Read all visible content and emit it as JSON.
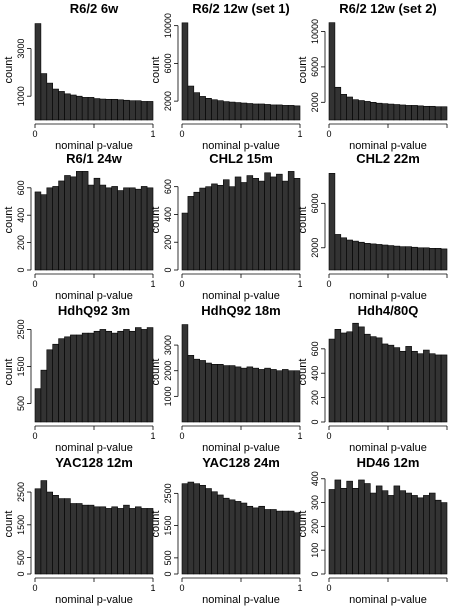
{
  "chart_data": [
    {
      "type": "bar",
      "title": "R6/2 6w",
      "xlabel": "nominal p-value",
      "ylabel": "count",
      "xlim": [
        0,
        1
      ],
      "ylim": [
        0,
        4200
      ],
      "xticks": [
        0,
        0.5,
        1
      ],
      "xticklabels": [
        "0",
        "",
        "1"
      ],
      "yticks": [
        1000,
        3000
      ],
      "yticklabels": [
        "1000",
        "3000"
      ],
      "bin_edges": [
        0,
        0.05,
        0.1,
        0.15,
        0.2,
        0.25,
        0.3,
        0.35,
        0.4,
        0.45,
        0.5,
        0.55,
        0.6,
        0.65,
        0.7,
        0.75,
        0.8,
        0.85,
        0.9,
        0.95,
        1
      ],
      "values": [
        4050,
        1950,
        1550,
        1300,
        1200,
        1100,
        1050,
        1000,
        950,
        950,
        900,
        880,
        870,
        870,
        850,
        830,
        810,
        810,
        780,
        780
      ]
    },
    {
      "type": "bar",
      "title": "R6/2 12w (set 1)",
      "xlabel": "nominal p-value",
      "ylabel": "count",
      "xlim": [
        0,
        1
      ],
      "ylim": [
        0,
        10600
      ],
      "xticks": [
        0,
        0.5,
        1
      ],
      "xticklabels": [
        "0",
        "",
        "1"
      ],
      "yticks": [
        2000,
        6000,
        10000
      ],
      "yticklabels": [
        "2000",
        "6000",
        "10000"
      ],
      "bin_edges": [
        0,
        0.05,
        0.1,
        0.15,
        0.2,
        0.25,
        0.3,
        0.35,
        0.4,
        0.45,
        0.5,
        0.55,
        0.6,
        0.65,
        0.7,
        0.75,
        0.8,
        0.85,
        0.9,
        0.95,
        1
      ],
      "values": [
        10300,
        3600,
        2900,
        2500,
        2300,
        2150,
        2050,
        1950,
        1900,
        1850,
        1800,
        1750,
        1700,
        1700,
        1650,
        1600,
        1600,
        1550,
        1550,
        1500
      ]
    },
    {
      "type": "bar",
      "title": "R6/2 12w (set 2)",
      "xlabel": "nominal p-value",
      "ylabel": "count",
      "xlim": [
        0,
        1
      ],
      "ylim": [
        0,
        11300
      ],
      "xticks": [
        0,
        0.5,
        1
      ],
      "xticklabels": [
        "0",
        "",
        ""
      ],
      "yticks": [
        2000,
        6000,
        10000
      ],
      "yticklabels": [
        "2000",
        "6000",
        "10000"
      ],
      "bin_edges": [
        0,
        0.05,
        0.1,
        0.15,
        0.2,
        0.25,
        0.3,
        0.35,
        0.4,
        0.45,
        0.5,
        0.55,
        0.6,
        0.65,
        0.7,
        0.75,
        0.8,
        0.85,
        0.9,
        0.95,
        1
      ],
      "values": [
        11000,
        3700,
        2900,
        2600,
        2300,
        2200,
        2100,
        2000,
        1900,
        1850,
        1800,
        1750,
        1700,
        1650,
        1650,
        1600,
        1550,
        1550,
        1500,
        1500
      ]
    },
    {
      "type": "bar",
      "title": "R6/1 24w",
      "xlabel": "nominal p-value",
      "ylabel": "count",
      "xlim": [
        0,
        1
      ],
      "ylim": [
        0,
        730
      ],
      "xticks": [
        0,
        0.5,
        1
      ],
      "xticklabels": [
        "0",
        "",
        "1"
      ],
      "yticks": [
        0,
        200,
        400,
        600
      ],
      "yticklabels": [
        "0",
        "200",
        "400",
        "600"
      ],
      "bin_edges": [
        0,
        0.05,
        0.1,
        0.15,
        0.2,
        0.25,
        0.3,
        0.35,
        0.4,
        0.45,
        0.5,
        0.55,
        0.6,
        0.65,
        0.7,
        0.75,
        0.8,
        0.85,
        0.9,
        0.95,
        1
      ],
      "values": [
        570,
        550,
        600,
        610,
        650,
        690,
        680,
        720,
        720,
        620,
        670,
        620,
        600,
        610,
        580,
        600,
        600,
        590,
        610,
        600
      ]
    },
    {
      "type": "bar",
      "title": "CHL2 15m",
      "xlabel": "nominal p-value",
      "ylabel": "count",
      "xlim": [
        0,
        1
      ],
      "ylim": [
        0,
        720
      ],
      "xticks": [
        0,
        0.5,
        1
      ],
      "xticklabels": [
        "0",
        "",
        "1"
      ],
      "yticks": [
        0,
        200,
        400,
        600
      ],
      "yticklabels": [
        "0",
        "200",
        "400",
        "600"
      ],
      "bin_edges": [
        0,
        0.05,
        0.1,
        0.15,
        0.2,
        0.25,
        0.3,
        0.35,
        0.4,
        0.45,
        0.5,
        0.55,
        0.6,
        0.65,
        0.7,
        0.75,
        0.8,
        0.85,
        0.9,
        0.95,
        1
      ],
      "values": [
        410,
        530,
        560,
        590,
        600,
        620,
        610,
        650,
        600,
        670,
        630,
        680,
        660,
        640,
        700,
        670,
        690,
        640,
        710,
        660
      ]
    },
    {
      "type": "bar",
      "title": "CHL2 22m",
      "xlabel": "nominal p-value",
      "ylabel": "count",
      "xlim": [
        0,
        1
      ],
      "ylim": [
        0,
        9000
      ],
      "xticks": [
        0,
        0.5,
        1
      ],
      "xticklabels": [
        "0",
        "",
        ""
      ],
      "yticks": [
        2000,
        6000
      ],
      "yticklabels": [
        "2000",
        "6000"
      ],
      "bin_edges": [
        0,
        0.05,
        0.1,
        0.15,
        0.2,
        0.25,
        0.3,
        0.35,
        0.4,
        0.45,
        0.5,
        0.55,
        0.6,
        0.65,
        0.7,
        0.75,
        0.8,
        0.85,
        0.9,
        0.95,
        1
      ],
      "values": [
        8700,
        3200,
        2900,
        2700,
        2600,
        2500,
        2400,
        2350,
        2300,
        2250,
        2200,
        2150,
        2100,
        2100,
        2050,
        2000,
        2000,
        1950,
        1950,
        1900
      ]
    },
    {
      "type": "bar",
      "title": "HdhQ92 3m",
      "xlabel": "nominal p-value",
      "ylabel": "count",
      "xlim": [
        0,
        1
      ],
      "ylim": [
        0,
        2700
      ],
      "xticks": [
        0,
        0.5,
        1
      ],
      "xticklabels": [
        "0",
        "",
        "1"
      ],
      "yticks": [
        500,
        1500,
        2500
      ],
      "yticklabels": [
        "500",
        "1500",
        "2500"
      ],
      "bin_edges": [
        0,
        0.05,
        0.1,
        0.15,
        0.2,
        0.25,
        0.3,
        0.35,
        0.4,
        0.45,
        0.5,
        0.55,
        0.6,
        0.65,
        0.7,
        0.75,
        0.8,
        0.85,
        0.9,
        0.95,
        1
      ],
      "values": [
        900,
        1400,
        1950,
        2100,
        2250,
        2300,
        2350,
        2350,
        2400,
        2400,
        2450,
        2500,
        2450,
        2400,
        2450,
        2500,
        2450,
        2550,
        2500,
        2550
      ]
    },
    {
      "type": "bar",
      "title": "HdhQ92 18m",
      "xlabel": "nominal p-value",
      "ylabel": "count",
      "xlim": [
        0,
        1
      ],
      "ylim": [
        0,
        3900
      ],
      "xticks": [
        0,
        0.5,
        1
      ],
      "xticklabels": [
        "0",
        "",
        "1"
      ],
      "yticks": [
        1000,
        2000,
        3000
      ],
      "yticklabels": [
        "1000",
        "2000",
        "3000"
      ],
      "bin_edges": [
        0,
        0.05,
        0.1,
        0.15,
        0.2,
        0.25,
        0.3,
        0.35,
        0.4,
        0.45,
        0.5,
        0.55,
        0.6,
        0.65,
        0.7,
        0.75,
        0.8,
        0.85,
        0.9,
        0.95,
        1
      ],
      "values": [
        3800,
        2600,
        2450,
        2400,
        2300,
        2250,
        2250,
        2200,
        2200,
        2150,
        2100,
        2150,
        2100,
        2050,
        2100,
        2050,
        2000,
        2050,
        2000,
        2000
      ]
    },
    {
      "type": "bar",
      "title": "Hdh4/80Q",
      "xlabel": "nominal p-value",
      "ylabel": "count",
      "xlim": [
        0,
        1
      ],
      "ylim": [
        0,
        820
      ],
      "xticks": [
        0,
        0.5,
        1
      ],
      "xticklabels": [
        "0",
        "",
        ""
      ],
      "yticks": [
        0,
        200,
        400,
        600
      ],
      "yticklabels": [
        "0",
        "200",
        "400",
        "600"
      ],
      "bin_edges": [
        0,
        0.05,
        0.1,
        0.15,
        0.2,
        0.25,
        0.3,
        0.35,
        0.4,
        0.45,
        0.5,
        0.55,
        0.6,
        0.65,
        0.7,
        0.75,
        0.8,
        0.85,
        0.9,
        0.95,
        1
      ],
      "values": [
        680,
        760,
        730,
        740,
        810,
        780,
        720,
        700,
        690,
        640,
        630,
        610,
        580,
        620,
        580,
        560,
        590,
        560,
        550,
        550
      ]
    },
    {
      "type": "bar",
      "title": "YAC128 12m",
      "xlabel": "nominal p-value",
      "ylabel": "count",
      "xlim": [
        0,
        1
      ],
      "ylim": [
        0,
        3050
      ],
      "xticks": [
        0,
        0.5,
        1
      ],
      "xticklabels": [
        "0",
        "",
        "1"
      ],
      "yticks": [
        0,
        500,
        1500,
        2500
      ],
      "yticklabels": [
        "0",
        "500",
        "1500",
        "2500"
      ],
      "bin_edges": [
        0,
        0.05,
        0.1,
        0.15,
        0.2,
        0.25,
        0.3,
        0.35,
        0.4,
        0.45,
        0.5,
        0.55,
        0.6,
        0.65,
        0.7,
        0.75,
        0.8,
        0.85,
        0.9,
        0.95,
        1
      ],
      "values": [
        2600,
        2850,
        2500,
        2400,
        2300,
        2300,
        2150,
        2150,
        2100,
        2100,
        2050,
        2050,
        2000,
        2050,
        2000,
        2100,
        2000,
        2050,
        2000,
        2000
      ]
    },
    {
      "type": "bar",
      "title": "YAC128 24m",
      "xlabel": "nominal p-value",
      "ylabel": "count",
      "xlim": [
        0,
        1
      ],
      "ylim": [
        0,
        3100
      ],
      "xticks": [
        0,
        0.5,
        1
      ],
      "xticklabels": [
        "0",
        "",
        "1"
      ],
      "yticks": [
        0,
        500,
        1500,
        2500
      ],
      "yticklabels": [
        "0",
        "500",
        "1500",
        "2500"
      ],
      "bin_edges": [
        0,
        0.05,
        0.1,
        0.15,
        0.2,
        0.25,
        0.3,
        0.35,
        0.4,
        0.45,
        0.5,
        0.55,
        0.6,
        0.65,
        0.7,
        0.75,
        0.8,
        0.85,
        0.9,
        0.95,
        1
      ],
      "values": [
        2800,
        2850,
        2800,
        2750,
        2650,
        2550,
        2450,
        2350,
        2300,
        2250,
        2200,
        2100,
        2050,
        2100,
        2000,
        2000,
        1950,
        1950,
        1950,
        1900
      ]
    },
    {
      "type": "bar",
      "title": "HD46 12m",
      "xlabel": "nominal p-value",
      "ylabel": "count",
      "xlim": [
        0,
        1
      ],
      "ylim": [
        0,
        420
      ],
      "xticks": [
        0,
        0.5,
        1
      ],
      "xticklabels": [
        "0",
        "",
        ""
      ],
      "yticks": [
        0,
        100,
        200,
        300,
        400
      ],
      "yticklabels": [
        "0",
        "100",
        "200",
        "300",
        "400"
      ],
      "bin_edges": [
        0,
        0.05,
        0.1,
        0.15,
        0.2,
        0.25,
        0.3,
        0.35,
        0.4,
        0.45,
        0.5,
        0.55,
        0.6,
        0.65,
        0.7,
        0.75,
        0.8,
        0.85,
        0.9,
        0.95,
        1
      ],
      "values": [
        355,
        395,
        360,
        390,
        360,
        395,
        380,
        340,
        370,
        350,
        330,
        370,
        350,
        340,
        330,
        320,
        330,
        340,
        310,
        300
      ]
    }
  ]
}
